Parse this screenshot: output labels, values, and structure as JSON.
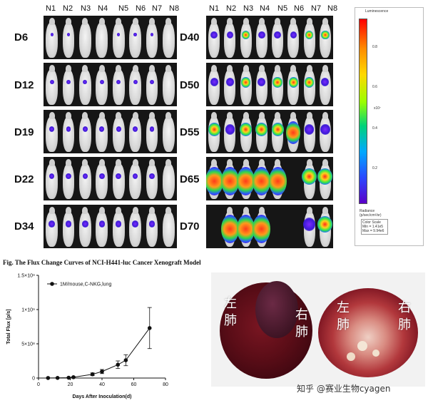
{
  "imaging": {
    "mouse_labels": [
      "N1",
      "N2",
      "N3",
      "N4",
      "N5",
      "N6",
      "N7",
      "N8"
    ],
    "left_days": [
      "D6",
      "D12",
      "D19",
      "D22",
      "D34"
    ],
    "right_days": [
      "D40",
      "D50",
      "D55",
      "D65",
      "D70"
    ]
  },
  "colorbar": {
    "title": "Luminescence",
    "ticks": [
      "0.8",
      "0.6",
      "0.4",
      "0.2"
    ],
    "exponent": "x10⁷",
    "unit_label": "Radiance\n(p/sec/cm²/sr)",
    "scale_lines": [
      "Color Scale",
      "Min = 1.41e5",
      "Max = 9.94e6"
    ]
  },
  "figure": {
    "caption": "Fig. The Flux Change Curves of NCI-H441-luc Cancer Xenograft Model"
  },
  "photo": {
    "left_labels": [
      "左",
      "肺"
    ],
    "right_labels": [
      "右",
      "肺"
    ],
    "watermark": "知乎 @赛业生物cyagen"
  },
  "chart_data": {
    "type": "line",
    "title": "",
    "xlabel": "Days After Inoculation(d)",
    "ylabel": "Total Flux [p/s]",
    "xlim": [
      0,
      80
    ],
    "ylim": [
      0,
      1500000000.0
    ],
    "xticks": [
      "0",
      "20",
      "40",
      "60",
      "80"
    ],
    "yticks": [
      "0",
      "5×10⁸",
      "1×10⁹",
      "1.5×10⁹"
    ],
    "series": [
      {
        "name": "1M/mouse,C-NKG,lung",
        "x": [
          6,
          12,
          19,
          22,
          34,
          40,
          50,
          55,
          70
        ],
        "y": [
          1000000.0,
          2000000.0,
          5000000.0,
          12000000.0,
          55000000.0,
          95000000.0,
          195000000.0,
          260000000.0,
          730000000.0
        ],
        "error": [
          1000000.0,
          2000000.0,
          4000000.0,
          8000000.0,
          20000000.0,
          30000000.0,
          55000000.0,
          80000000.0,
          300000000.0
        ]
      }
    ]
  }
}
